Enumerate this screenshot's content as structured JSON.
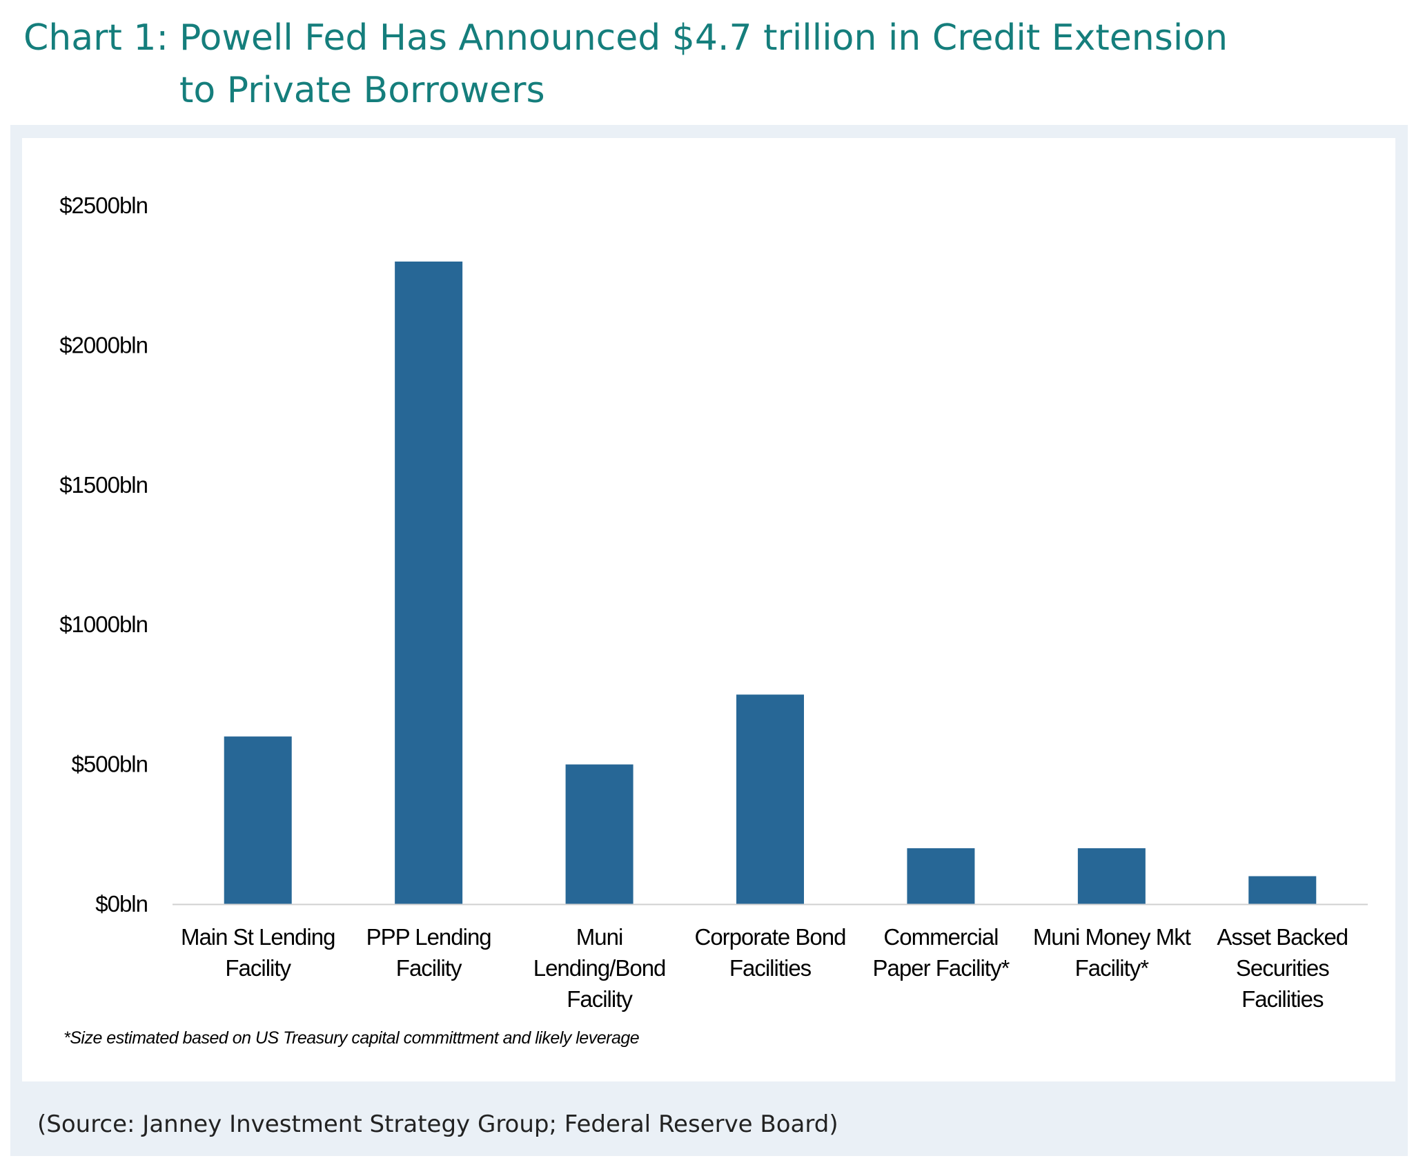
{
  "title": {
    "prefix": "Chart 1:",
    "line1": "Powell Fed Has Announced $4.7 trillion in Credit Extension",
    "line2": "to Private Borrowers"
  },
  "chart_data": {
    "type": "bar",
    "categories": [
      [
        "Main St Lending",
        "Facility"
      ],
      [
        "PPP Lending",
        "Facility"
      ],
      [
        "Muni",
        "Lending/Bond",
        "Facility"
      ],
      [
        "Corporate Bond",
        "Facilities"
      ],
      [
        "Commercial",
        "Paper Facility*"
      ],
      [
        "Muni Money Mkt",
        "Facility*"
      ],
      [
        "Asset Backed",
        "Securities",
        "Facilities"
      ]
    ],
    "values": [
      600,
      2300,
      500,
      750,
      200,
      200,
      100
    ],
    "y_ticks": [
      0,
      500,
      1000,
      1500,
      2000,
      2500
    ],
    "y_tick_labels": [
      "$0bln",
      "$500bln",
      "$1000bln",
      "$1500bln",
      "$2000bln",
      "$2500bln"
    ],
    "ylim": [
      0,
      2500
    ],
    "bar_color": "#276796",
    "grid": false,
    "legend": "none"
  },
  "footnote": "*Size estimated based on US Treasury capital committment and likely leverage",
  "source": "(Source: Janney Investment Strategy Group; Federal Reserve Board)"
}
